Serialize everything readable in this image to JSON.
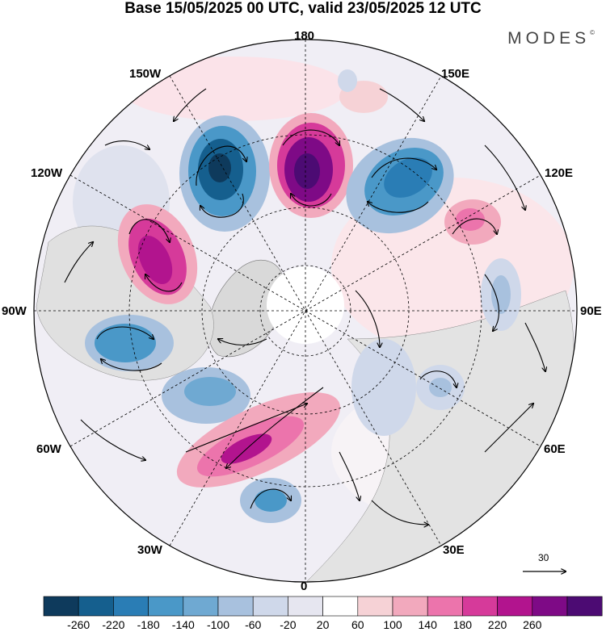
{
  "header": {
    "title": "Base 15/05/2025 00 UTC, valid 23/05/2025 12 UTC",
    "brand": "MODES",
    "brand_mark": "©"
  },
  "map": {
    "projection": "north-polar-stereographic",
    "longitude_labels": {
      "l180": "180",
      "l150e": "150E",
      "l120e": "120E",
      "l90e": "90E",
      "l60e": "60E",
      "l30e": "30E",
      "l0": "0",
      "l30w": "30W",
      "l60w": "60W",
      "l90w": "90W",
      "l120w": "120W",
      "l150w": "150W"
    },
    "reference_vector": "30",
    "colors": {
      "land_gray": "#d4d4d4",
      "graticule": "#000000"
    }
  },
  "colorbar": {
    "labels": [
      "-260",
      "-220",
      "-180",
      "-140",
      "-100",
      "-60",
      "-20",
      "20",
      "60",
      "100",
      "140",
      "180",
      "220",
      "260"
    ],
    "colors": [
      "#0e3a5c",
      "#155f8e",
      "#2a7db5",
      "#4a98c8",
      "#6fa9d2",
      "#a8c1de",
      "#cfd8ea",
      "#e6e6f0",
      "#ffffff",
      "#f6d2d6",
      "#f2a9bd",
      "#ec74ac",
      "#d63a9a",
      "#b2148e",
      "#7e0a86",
      "#4c0b73"
    ]
  }
}
